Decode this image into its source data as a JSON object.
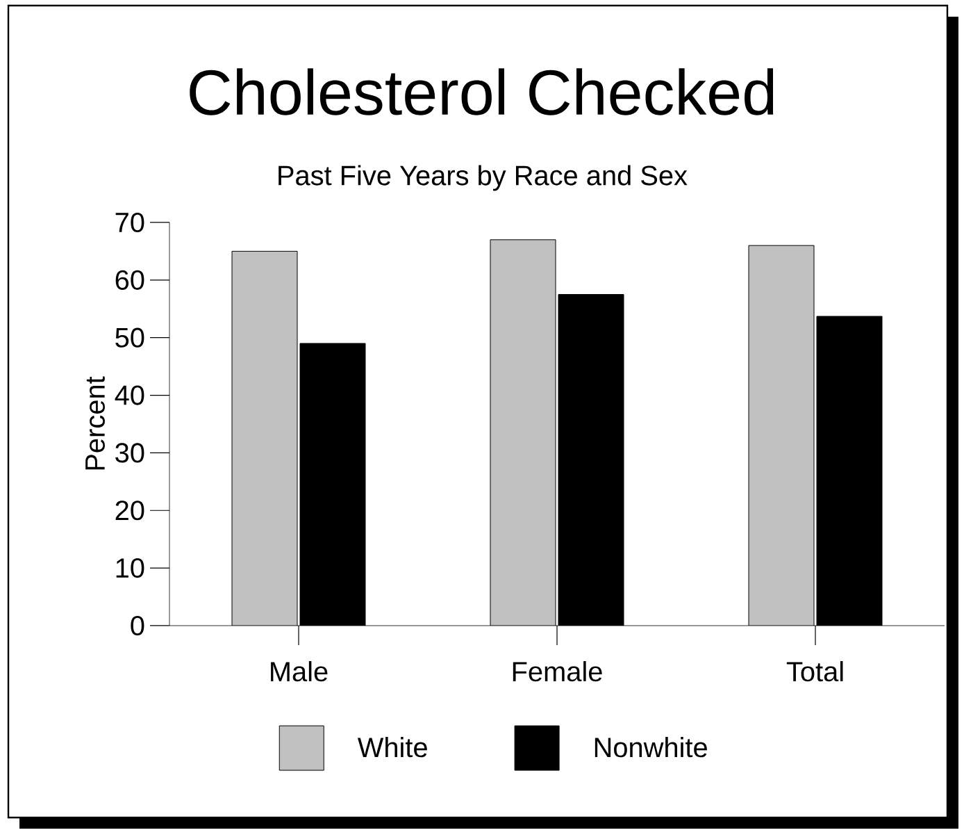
{
  "chart_data": {
    "type": "bar",
    "title": "Cholesterol Checked",
    "subtitle": "Past Five Years by Race and Sex",
    "ylabel": "Percent",
    "categories": [
      "Male",
      "Female",
      "Total"
    ],
    "series": [
      {
        "name": "White",
        "color": "#c0c0c0",
        "values": [
          65,
          67,
          66
        ]
      },
      {
        "name": "Nonwhite",
        "color": "#000000",
        "values": [
          49,
          57.5,
          53.7
        ]
      }
    ],
    "ylim": [
      0,
      70
    ],
    "yticks": [
      0,
      10,
      20,
      30,
      40,
      50,
      60,
      70
    ],
    "legend": "bottom"
  }
}
